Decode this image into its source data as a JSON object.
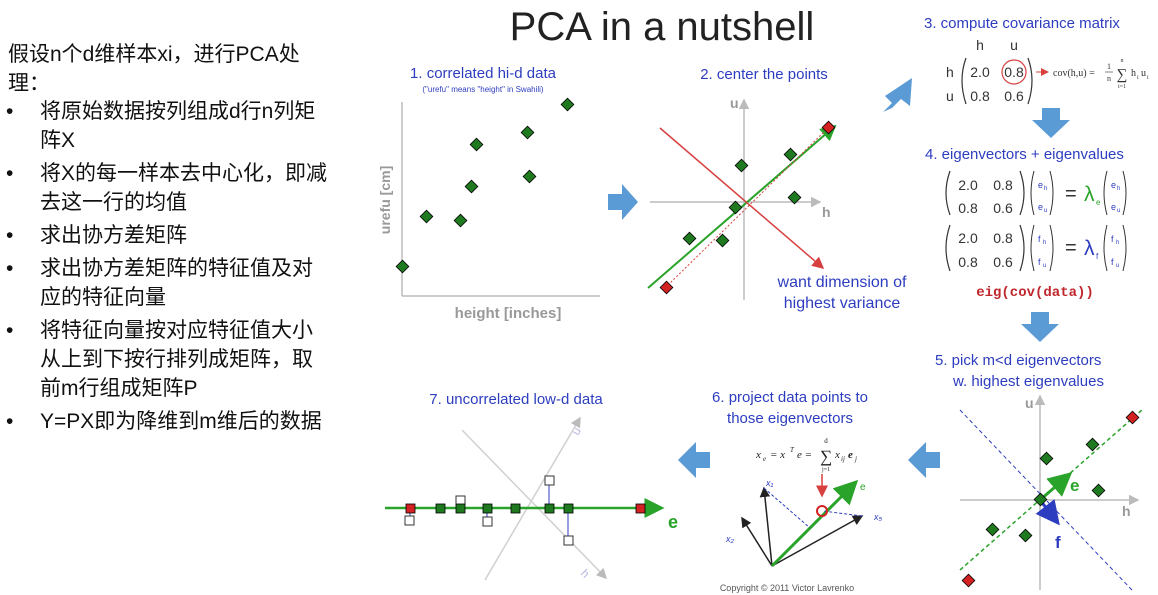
{
  "left_panel": {
    "intro": "假设n个d维样本xi，进行PCA处理：",
    "bullet_char": "•",
    "steps": [
      "将原始数据按列组成d行n列矩阵X",
      "将X的每一样本去中心化，即减去这一行的均值",
      "求出协方差矩阵",
      "求出协方差矩阵的特征值及对应的特征向量",
      "将特征向量按对应特征值大小从上到下按行排列成矩阵，取前m行组成矩阵P",
      "Y=PX即为降维到m维后的数据"
    ]
  },
  "slide": {
    "title": "PCA in a nutshell",
    "step1": {
      "title": "1. correlated hi-d data",
      "note": "(\"urefu\" means \"height\" in Swahili)",
      "ylabel": "urefu [cm]",
      "xlabel": "height [inches]"
    },
    "step2": {
      "title": "2. center the points",
      "axis_u": "u",
      "axis_h": "h",
      "annotation_line1": "want dimension of",
      "annotation_line2": "highest variance"
    },
    "step3": {
      "title": "3. compute covariance matrix",
      "col_h": "h",
      "col_u": "u",
      "row_h": "h",
      "row_u": "u",
      "m11": "2.0",
      "m12": "0.8",
      "m21": "0.8",
      "m22": "0.6",
      "formula_lhs": "cov(h,u) =",
      "formula_frac_num": "1",
      "formula_frac_den": "n",
      "formula_sum_top": "n",
      "formula_sum_bottom": "i=1",
      "formula_term": "h",
      "formula_term_sub": "i",
      "formula_term2": "u",
      "formula_term2_sub": "i"
    },
    "step4": {
      "title": "4. eigenvectors + eigenvalues",
      "m11": "2.0",
      "m12": "0.8",
      "m21": "0.8",
      "m22": "0.6",
      "vec_e_top": "e",
      "vec_e_top_sub": "h",
      "vec_e_bot": "e",
      "vec_e_bot_sub": "u",
      "vec_f_top": "f",
      "vec_f_top_sub": "h",
      "vec_f_bot": "f",
      "vec_f_bot_sub": "u",
      "equals": "=",
      "lambda": "λ",
      "lambda_e_sub": "e",
      "lambda_f_sub": "f",
      "code": "eig(cov(data))"
    },
    "step5": {
      "title_line1": "5. pick m<d eigenvectors",
      "title_line2": "w. highest eigenvalues",
      "axis_u": "u",
      "axis_h": "h",
      "vec_e": "e",
      "vec_f": "f"
    },
    "step6": {
      "title_line1": "6. project data points to",
      "title_line2": "those eigenvectors",
      "formula_lhs": "x",
      "formula_lhs_sub": "e",
      "formula_mid": "= x",
      "formula_sup": "T",
      "formula_e": "e =",
      "formula_sum_top": "d",
      "formula_sum_bottom": "j=1",
      "formula_term": "x",
      "formula_term_sub": "ij",
      "formula_term2": "e",
      "formula_term2_sub": "j",
      "label_x1": "x₁",
      "label_x2": "x₂",
      "label_x5": "x₅",
      "label_e": "e"
    },
    "step7": {
      "title": "7. uncorrelated low-d data",
      "vec_e": "e",
      "label_u": "u",
      "label_h": "h"
    },
    "copyright": "Copyright © 2011 Victor Lavrenko",
    "colors": {
      "label_blue": "#2d3dbf",
      "point_green": "#1f7a1f",
      "point_red": "#d22222",
      "axis_green": "#2aa32a",
      "axis_red": "#d84040",
      "flow_arrow": "#5b9bd5",
      "code_red": "#c0272d"
    }
  }
}
